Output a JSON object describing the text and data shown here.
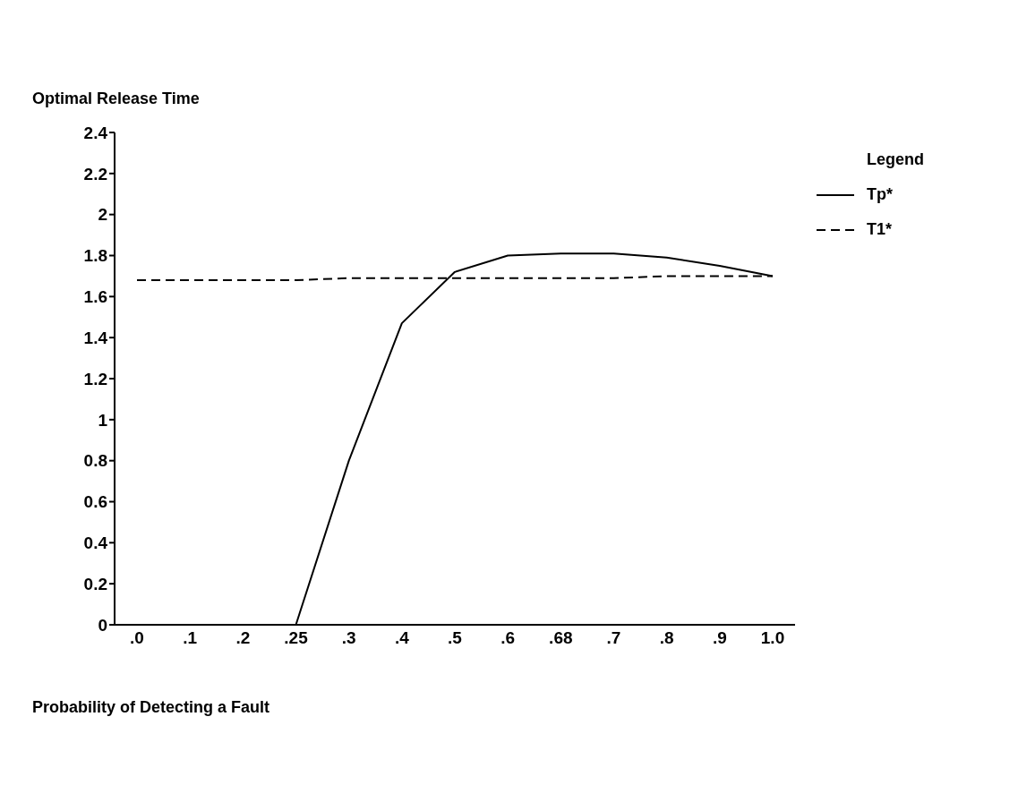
{
  "chart_data": {
    "type": "line",
    "ylabel": "Optimal Release Time",
    "xlabel": "Probability of Detecting a Fault",
    "legend_title": "Legend",
    "legend": "right",
    "categories": [
      ".0",
      ".1",
      ".2",
      ".25",
      ".3",
      ".4",
      ".5",
      ".6",
      ".68",
      ".7",
      ".8",
      ".9",
      "1.0"
    ],
    "series": [
      {
        "name": "Tp*",
        "color": "#000000",
        "line_style": "solid",
        "values": [
          null,
          null,
          null,
          0,
          0.8,
          1.47,
          1.72,
          1.8,
          1.81,
          1.81,
          1.79,
          1.75,
          1.7
        ]
      },
      {
        "name": "T1*",
        "color": "#000000",
        "line_style": "dashed",
        "values": [
          1.68,
          1.68,
          1.68,
          1.68,
          1.69,
          1.69,
          1.69,
          1.69,
          1.69,
          1.69,
          1.7,
          1.7,
          1.7
        ]
      }
    ],
    "ylim": [
      0,
      2.4
    ],
    "yticks": [
      0,
      0.2,
      0.4,
      0.6,
      0.8,
      1,
      1.2,
      1.4,
      1.6,
      1.8,
      2,
      2.2,
      2.4
    ],
    "grid": false,
    "marker": "none"
  }
}
